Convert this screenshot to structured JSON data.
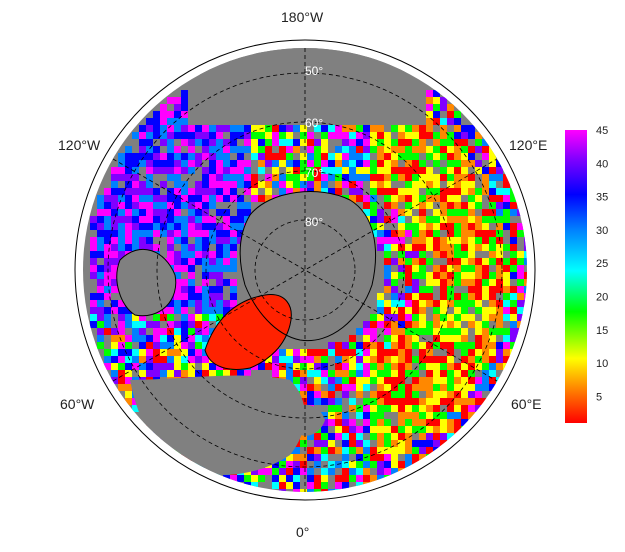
{
  "map": {
    "projection": "north polar stereographic",
    "longitude_labels": {
      "top": "180°W",
      "upper_left": "120°W",
      "upper_right": "120°E",
      "lower_left": "60°W",
      "lower_right": "60°E",
      "bottom": "0°"
    },
    "latitude_labels": [
      "50°",
      "60°",
      "70°",
      "80°"
    ],
    "colors": {
      "no_data": "#808080",
      "coastline": "#000000",
      "graticule": "#000000",
      "frame": "#000000"
    }
  },
  "colorbar": {
    "ticks": [
      "5",
      "10",
      "15",
      "20",
      "25",
      "30",
      "35",
      "40",
      "45"
    ],
    "range": [
      1,
      45
    ],
    "colors_low_to_high": [
      "#ff0000",
      "#ff8800",
      "#ffff00",
      "#00ff00",
      "#00ffff",
      "#0080ff",
      "#0000ff",
      "#8000ff",
      "#ff00ff"
    ]
  }
}
